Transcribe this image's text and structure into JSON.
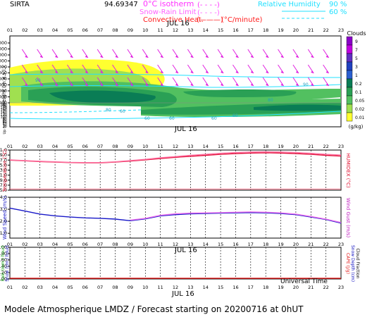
{
  "header": {
    "site": "SIRTA",
    "station_number": "94.69347",
    "legend_iso": "0°C isotherm",
    "legend_snow": "Snow-Rain Limit",
    "legend_conv": "Convective Heat.",
    "conv_unit": "(°C/minute)",
    "rh_label": "Relative Humidity",
    "rh_90": "90 %",
    "rh_60": "60 %",
    "legend_dash": "(- - - -)",
    "legend_solid": "(———)"
  },
  "hours": [
    "01",
    "02",
    "03",
    "04",
    "05",
    "06",
    "07",
    "08",
    "09",
    "10",
    "11",
    "12",
    "13",
    "14",
    "15",
    "16",
    "17",
    "18",
    "19",
    "20",
    "21",
    "22",
    "23"
  ],
  "date_label": "JUL 16",
  "footer": {
    "universal_time": "Universal Time",
    "caption": "Modele Atmospherique LMDZ / Forecast starting on 20200716 at 0hUT"
  },
  "chart_data": [
    {
      "type": "heatmap",
      "name": "cloud_panel",
      "ylabel": "Height  (m a.s.l.)",
      "ylabel_low": "Up to 200 m a.g.l.",
      "yticks_upper": [
        "11000",
        "10000",
        "9000",
        "8000",
        "7000",
        "6000",
        "5000",
        "4000",
        "3000",
        "2000",
        "1000"
      ],
      "yticks_lower": [
        "200",
        "180",
        "160",
        "140",
        "120",
        "100",
        "80",
        "60",
        "40",
        "20"
      ],
      "colorbar": {
        "title": "Clouds",
        "unit": "(g/kg)",
        "labels": [
          "9",
          "7",
          "5",
          "3",
          "1",
          "0.2",
          "0.1",
          "0.05",
          "0.02",
          "0.01"
        ],
        "colors": [
          "#8b00c8",
          "#c000e0",
          "#6030c0",
          "#2040c0",
          "#2a5fd0",
          "#0a7d55",
          "#2aa055",
          "#52c060",
          "#a0e050",
          "#ffff30"
        ]
      },
      "isotherm_labels": [
        "90",
        "80",
        "60",
        "60",
        "60",
        "60",
        "60",
        "80",
        "90"
      ]
    },
    {
      "type": "line",
      "name": "temperature_panel",
      "ylabel": "Temperature (°C)",
      "ylabel_right": "HUMIDEX (°C)",
      "yticks": [
        "21.0",
        "19.0",
        "17.0",
        "15.0",
        "13.0",
        "11.0",
        "9.0",
        "7.0",
        "5.0"
      ],
      "ylim": [
        5.0,
        21.0
      ],
      "x": [
        1,
        2,
        3,
        4,
        5,
        6,
        7,
        8,
        9,
        10,
        11,
        12,
        13,
        14,
        15,
        16,
        17,
        18,
        19,
        20,
        21,
        22,
        23
      ],
      "series": [
        {
          "color": "#e0103a",
          "values": [
            17.0,
            16.7,
            16.4,
            16.2,
            16.0,
            15.9,
            15.9,
            16.2,
            16.6,
            17.1,
            17.6,
            18.1,
            18.5,
            18.9,
            19.3,
            19.6,
            19.8,
            19.9,
            19.8,
            19.6,
            19.3,
            18.9,
            18.6
          ]
        },
        {
          "color": "#ff6fa0",
          "values": [
            17.1,
            16.8,
            16.5,
            16.3,
            16.1,
            16.0,
            16.0,
            16.3,
            16.8,
            17.3,
            17.9,
            18.4,
            18.9,
            19.3,
            19.7,
            20.0,
            20.2,
            20.3,
            20.2,
            20.0,
            19.7,
            19.3,
            19.0
          ]
        }
      ]
    },
    {
      "type": "line",
      "name": "wind_panel",
      "ylabel": "Wind Speed (m/s)",
      "ylabel_right": "Wind Gust (m/s)",
      "yticks": [
        "4.0",
        "3.0",
        "2.0",
        "1.0"
      ],
      "ylim": [
        0.6,
        4.0
      ],
      "x": [
        1,
        2,
        3,
        4,
        5,
        6,
        7,
        8,
        9,
        10,
        11,
        12,
        13,
        14,
        15,
        16,
        17,
        18,
        19,
        20,
        21,
        22,
        23
      ],
      "series": [
        {
          "color": "#1818c8",
          "values": [
            3.1,
            2.85,
            2.6,
            2.45,
            2.35,
            2.28,
            2.25,
            2.18,
            2.05,
            2.2,
            2.45,
            2.55,
            2.62,
            2.65,
            2.68,
            2.7,
            2.72,
            2.7,
            2.65,
            2.55,
            2.35,
            2.15,
            1.85
          ]
        },
        {
          "color": "#ee70ee",
          "values": [
            null,
            null,
            null,
            null,
            null,
            null,
            null,
            null,
            2.1,
            2.25,
            2.5,
            2.62,
            2.68,
            2.7,
            2.72,
            2.75,
            2.78,
            2.75,
            2.7,
            2.6,
            2.4,
            2.18,
            1.9
          ]
        }
      ]
    },
    {
      "type": "line",
      "name": "precip_panel",
      "ylabel_rain": "Rain (mm / hour)",
      "ylabel_snow": "Snow (cm / hour)",
      "ylabel_right_capf": "CAPE (J/g)",
      "ylabel_right_snow": "Snow Depth (cm)",
      "ylabel_right_cloud": "Cloud Fraction",
      "yticks": [
        "1.00",
        "0.80",
        "0.60",
        "0.40",
        "0.20",
        "0.00"
      ],
      "ylim": [
        0.0,
        1.0
      ],
      "x": [
        1,
        2,
        3,
        4,
        5,
        6,
        7,
        8,
        9,
        10,
        11,
        12,
        13,
        14,
        15,
        16,
        17,
        18,
        19,
        20,
        21,
        22,
        23
      ],
      "series": [
        {
          "color": "#e01010",
          "values": [
            0.02,
            0.02,
            0.02,
            0.02,
            0.02,
            0.02,
            0.02,
            0.02,
            0.02,
            0.02,
            0.02,
            0.02,
            0.02,
            0.02,
            0.02,
            0.02,
            0.02,
            0.02,
            0.02,
            0.02,
            0.02,
            0.02,
            0.02
          ]
        }
      ]
    }
  ]
}
